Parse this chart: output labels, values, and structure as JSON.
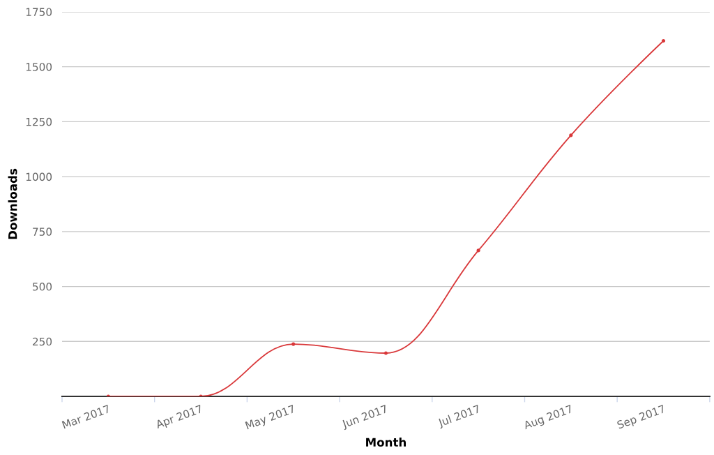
{
  "chart_data": {
    "type": "line",
    "xlabel": "Month",
    "ylabel": "Downloads",
    "categories": [
      "Mar 2017",
      "Apr 2017",
      "May 2017",
      "Jun 2017",
      "Jul 2017",
      "Aug 2017",
      "Sep 2017"
    ],
    "series": [
      {
        "color": "#d9383a",
        "values": [
          0,
          0,
          238,
          197,
          664,
          1188,
          1618
        ]
      }
    ],
    "ylim": [
      0,
      1750
    ],
    "yticks": [
      250,
      500,
      750,
      1000,
      1250,
      1500,
      1750
    ],
    "grid": "y",
    "marker": "circle",
    "line_style": "solid"
  }
}
